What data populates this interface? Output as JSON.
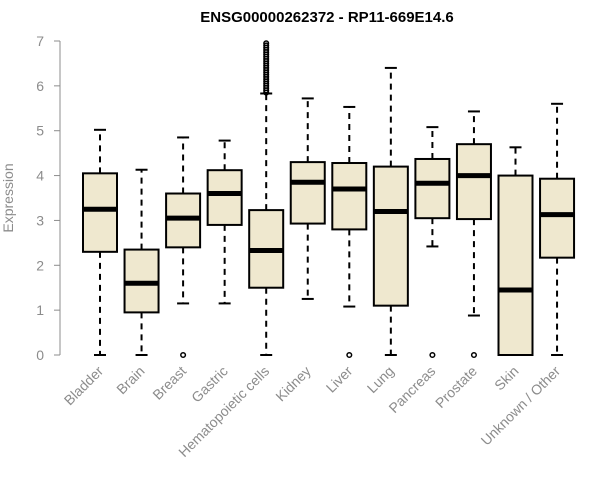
{
  "chart_data": {
    "type": "box",
    "title": "ENSG00000262372 - RP11-669E14.6",
    "xlabel": "",
    "ylabel": "Expression",
    "ylim": [
      0,
      7
    ],
    "yticks": [
      0,
      1,
      2,
      3,
      4,
      5,
      6,
      7
    ],
    "grid": false,
    "legend": "none",
    "colors": {
      "box_fill": "#efe8cf",
      "box_stroke": "#000000",
      "median": "#000000",
      "axis": "#8c8c8c"
    },
    "categories": [
      "Bladder",
      "Brain",
      "Breast",
      "Gastric",
      "Hematopoietic cells",
      "Kidney",
      "Liver",
      "Lung",
      "Pancreas",
      "Prostate",
      "Skin",
      "Unknown / Other"
    ],
    "boxes": [
      {
        "min": 0.0,
        "q1": 2.3,
        "median": 3.25,
        "q3": 4.05,
        "max": 5.02,
        "outliers": []
      },
      {
        "min": 0.0,
        "q1": 0.95,
        "median": 1.6,
        "q3": 2.35,
        "max": 4.13,
        "outliers": []
      },
      {
        "min": 1.15,
        "q1": 2.4,
        "median": 3.05,
        "q3": 3.6,
        "max": 4.85,
        "outliers": [
          0.0
        ]
      },
      {
        "min": 1.15,
        "q1": 2.9,
        "median": 3.6,
        "q3": 4.12,
        "max": 4.78,
        "outliers": []
      },
      {
        "min": 0.0,
        "q1": 1.5,
        "median": 2.33,
        "q3": 3.23,
        "max": 5.83,
        "outliers": [
          5.85,
          5.9,
          5.95,
          6.0,
          6.05,
          6.1,
          6.15,
          6.2,
          6.25,
          6.3,
          6.35,
          6.4,
          6.45,
          6.5,
          6.55,
          6.6,
          6.65,
          6.7,
          6.75,
          6.8,
          6.85,
          6.9,
          6.95
        ]
      },
      {
        "min": 1.25,
        "q1": 2.93,
        "median": 3.85,
        "q3": 4.3,
        "max": 5.72,
        "outliers": []
      },
      {
        "min": 1.08,
        "q1": 2.8,
        "median": 3.7,
        "q3": 4.28,
        "max": 5.53,
        "outliers": [
          0.0
        ]
      },
      {
        "min": 0.0,
        "q1": 1.1,
        "median": 3.2,
        "q3": 4.2,
        "max": 6.4,
        "outliers": []
      },
      {
        "min": 2.42,
        "q1": 3.05,
        "median": 3.83,
        "q3": 4.37,
        "max": 5.08,
        "outliers": [
          0.0
        ]
      },
      {
        "min": 0.88,
        "q1": 3.03,
        "median": 4.0,
        "q3": 4.7,
        "max": 5.43,
        "outliers": [
          0.0
        ]
      },
      {
        "min": 0.0,
        "q1": 0.0,
        "median": 1.45,
        "q3": 4.0,
        "max": 4.63,
        "outliers": []
      },
      {
        "min": 0.0,
        "q1": 2.17,
        "median": 3.13,
        "q3": 3.93,
        "max": 5.6,
        "outliers": []
      }
    ]
  }
}
